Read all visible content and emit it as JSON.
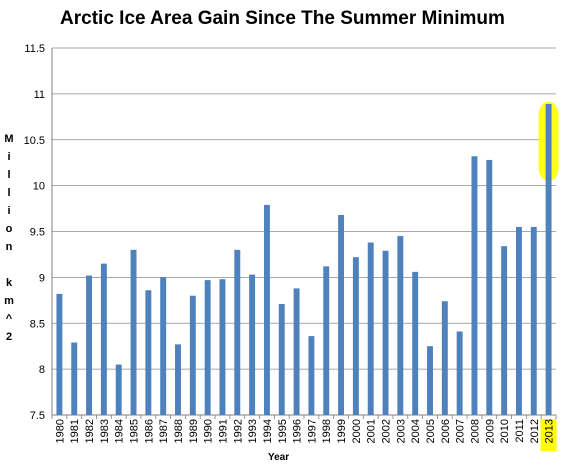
{
  "chart_data": {
    "type": "bar",
    "title": "Arctic Ice Area Gain Since The Summer Minimum",
    "xlabel": "Year",
    "ylabel_chars": [
      "M",
      "i",
      "l",
      "l",
      "i",
      "o",
      "n",
      "",
      "k",
      "m",
      "^",
      "2"
    ],
    "ylim": [
      7.5,
      11.5
    ],
    "yticks": [
      "7.5",
      "8",
      "8.5",
      "9",
      "9.5",
      "10",
      "10.5",
      "11",
      "11.5"
    ],
    "grid": true,
    "categories": [
      "1980",
      "1981",
      "1982",
      "1983",
      "1984",
      "1985",
      "1986",
      "1987",
      "1988",
      "1989",
      "1990",
      "1991",
      "1992",
      "1993",
      "1994",
      "1995",
      "1996",
      "1997",
      "1998",
      "1999",
      "2000",
      "2001",
      "2002",
      "2003",
      "2004",
      "2005",
      "2006",
      "2007",
      "2008",
      "2009",
      "2010",
      "2011",
      "2012",
      "2013"
    ],
    "values": [
      8.82,
      8.29,
      9.02,
      9.15,
      8.05,
      9.3,
      8.86,
      9.0,
      8.27,
      8.8,
      8.97,
      8.98,
      9.3,
      9.03,
      9.79,
      8.71,
      8.88,
      8.36,
      9.12,
      9.68,
      9.22,
      9.38,
      9.29,
      9.45,
      9.06,
      8.25,
      8.74,
      8.41,
      10.32,
      10.28,
      9.34,
      9.55,
      9.55,
      10.89
    ],
    "bar_color": "#4f81bd",
    "highlight": {
      "category": "2013",
      "color": "#ffff00"
    }
  }
}
